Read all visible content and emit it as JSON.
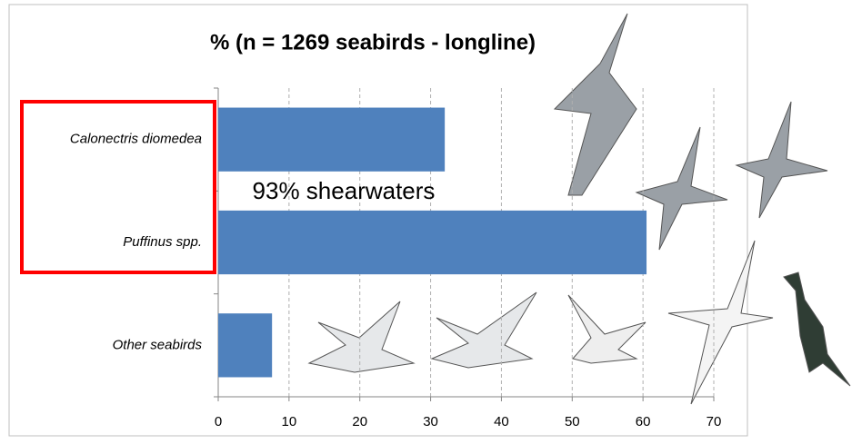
{
  "chart_data": {
    "type": "bar",
    "orientation": "horizontal",
    "title": "% (n = 1269 seabirds - longline)",
    "annotation": "93% shearwaters",
    "categories": [
      "Calonectris diomedea",
      "Puffinus spp.",
      "Other seabirds"
    ],
    "values": [
      32,
      60.5,
      7.6
    ],
    "color": "#4f81bd",
    "xlim": [
      0,
      70
    ],
    "xticks": [
      0,
      10,
      20,
      30,
      40,
      50,
      60,
      70
    ],
    "grid": true,
    "grid_style": "dashed",
    "highlight_color": "#ff0000"
  }
}
